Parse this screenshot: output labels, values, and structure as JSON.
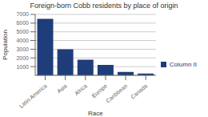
{
  "chart_data": {
    "type": "bar",
    "title": "Foreign-born Cobb residents by place of origin",
    "xlabel": "Race",
    "ylabel": "Population",
    "categories": [
      "Latin America",
      "Asia",
      "Africa",
      "Europe",
      "Caribbean",
      "Canada"
    ],
    "series": [
      {
        "name": "Column II",
        "color": "#1f3d7a",
        "values": [
          6500,
          3000,
          1800,
          1200,
          400,
          200
        ]
      }
    ],
    "ylim": [
      0,
      7000
    ],
    "yticks": [
      1000,
      2000,
      3000,
      4000,
      5000,
      6000,
      7000
    ],
    "grid": true,
    "legend": "right"
  }
}
